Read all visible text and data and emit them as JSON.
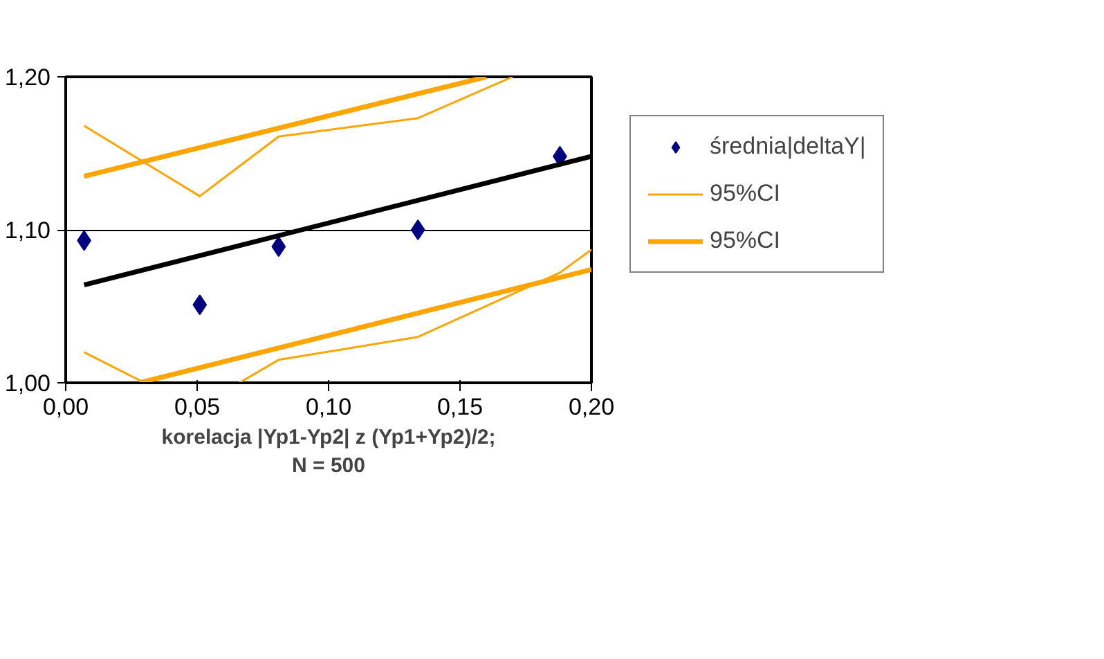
{
  "chart_data": {
    "type": "scatter",
    "xlabel": "korelacja |Yp1-Yp2| z (Yp1+Yp2)/2;\nN = 500",
    "xlim": [
      0,
      0.2
    ],
    "ylim": [
      1.0,
      1.2
    ],
    "xticks": [
      {
        "value": 0,
        "label": "0,00"
      },
      {
        "value": 0.05,
        "label": "0,05"
      },
      {
        "value": 0.1,
        "label": "0,10"
      },
      {
        "value": 0.15,
        "label": "0,15"
      },
      {
        "value": 0.2,
        "label": "0,20"
      }
    ],
    "yticks": [
      {
        "value": 1.0,
        "label": "1,00"
      },
      {
        "value": 1.1,
        "label": "1,10"
      },
      {
        "value": 1.2,
        "label": "1,20"
      }
    ],
    "grid": "y",
    "legend": "right",
    "series": [
      {
        "name": "średnia|deltaY|",
        "marker": "diamond",
        "color": "#000080",
        "x": [
          0.007,
          0.051,
          0.081,
          0.134,
          0.188
        ],
        "values": [
          1.093,
          1.051,
          1.089,
          1.1,
          1.148
        ]
      },
      {
        "type": "line",
        "color": "#000000",
        "x": [
          0.007,
          0.2
        ],
        "values": [
          1.064,
          1.148
        ]
      },
      {
        "name": "95%CI",
        "type": "line",
        "color": "#ffa500",
        "x": [
          0.007,
          0.051,
          0.081,
          0.134,
          0.17
        ],
        "values": [
          1.168,
          1.122,
          1.161,
          1.173,
          1.2
        ]
      },
      {
        "type": "line",
        "color": "#ffa500",
        "x": [
          0.007,
          0.03,
          0.05,
          0.066,
          0.081,
          0.134,
          0.188,
          0.2
        ],
        "values": [
          1.02,
          1.0,
          null,
          1.0,
          1.015,
          1.03,
          1.072,
          1.087
        ]
      },
      {
        "name": "95%CI",
        "type": "line",
        "color": "#ffa500",
        "x": [
          0.007,
          0.16
        ],
        "values": [
          1.135,
          1.2
        ]
      },
      {
        "type": "line",
        "color": "#ffa500",
        "x": [
          0.028,
          0.2
        ],
        "values": [
          1.0,
          1.074
        ]
      }
    ]
  }
}
